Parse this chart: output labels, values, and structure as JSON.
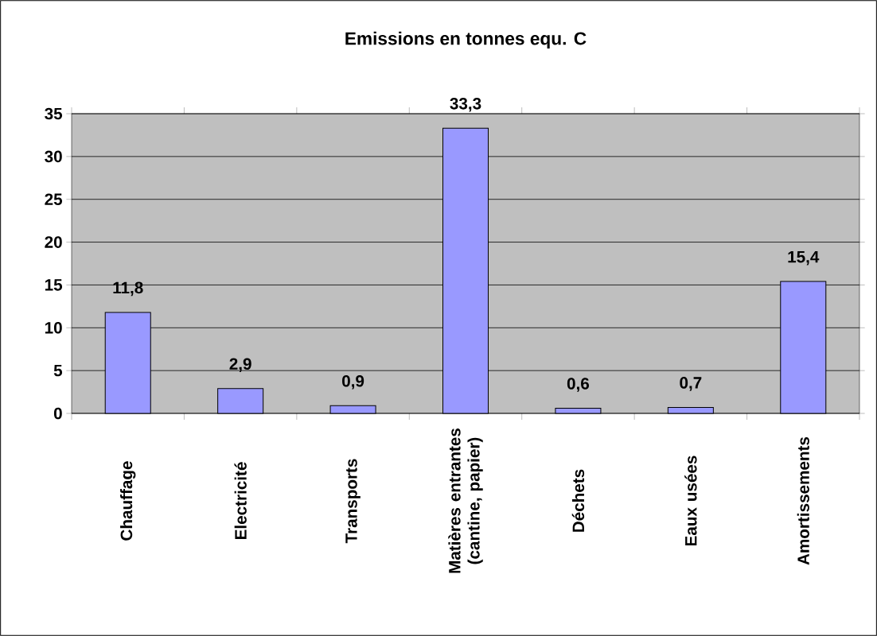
{
  "chart_data": {
    "type": "bar",
    "title": "Emissions en tonnes equ. C",
    "categories": [
      "Chauffage",
      "Electricité",
      "Transports",
      "Matières entrantes (cantine, papier)",
      "Déchets",
      "Eaux usées",
      "Amortissements"
    ],
    "values": [
      11.8,
      2.9,
      0.9,
      33.3,
      0.6,
      0.7,
      15.4
    ],
    "color": "#9999ff",
    "ylim": [
      0,
      35
    ],
    "yticks": [
      0,
      5,
      10,
      15,
      20,
      25,
      30,
      35
    ],
    "value_labels": [
      "11,8",
      "2,9",
      "0,9",
      "33,3",
      "0,6",
      "0,7",
      "15,4"
    ],
    "grid": "y"
  }
}
